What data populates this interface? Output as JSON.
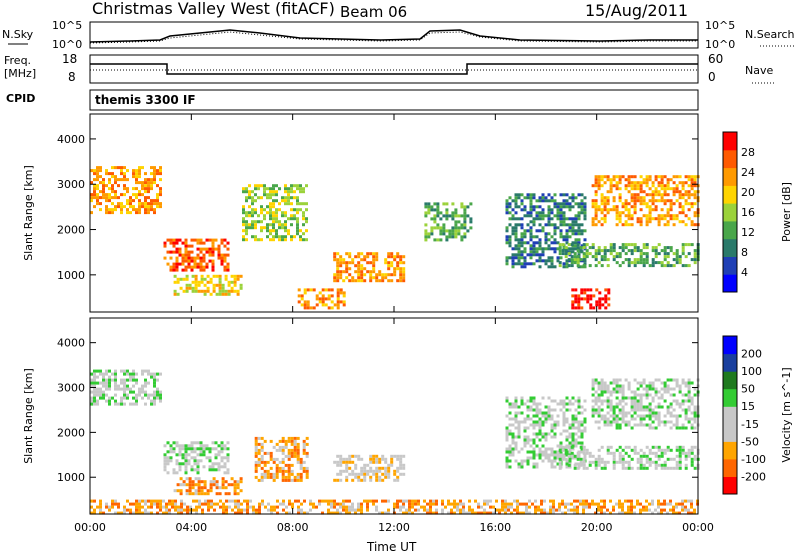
{
  "header": {
    "station": "Christmas Valley West (fitACF)",
    "beam": "Beam 06",
    "date": "15/Aug/2011"
  },
  "strip_labels": {
    "nsky": "N.Sky",
    "nsearch": "N.Search",
    "freq_line1": "Freq.",
    "freq_line2": "[MHz]",
    "nave": "Nave",
    "cpid": "CPID",
    "cpid_value": "themis 3300 IF"
  },
  "noise_axis": {
    "left_top": "10^5",
    "left_bottom": "10^0",
    "right_top": "10^5",
    "right_bottom": "10^0"
  },
  "freq_axis": {
    "left_top": "18",
    "left_bottom": "8",
    "right_top": "60",
    "right_bottom": "0"
  },
  "colors": {
    "power": [
      "#0000ff",
      "#1f3fb5",
      "#2a7a6a",
      "#49a64a",
      "#9bd23a",
      "#ffd400",
      "#ff9a00",
      "#ff5a00",
      "#ff0000"
    ],
    "velocity": [
      "#ff0000",
      "#ff6600",
      "#ffa500",
      "#c8c8c8",
      "#c8c8c8",
      "#33cc33",
      "#1f7a1f",
      "#1a3f9e",
      "#0000ff"
    ],
    "grid": "#000000"
  },
  "chart_data": [
    {
      "type": "heatmap",
      "title": "Power",
      "xlabel": "Time UT",
      "ylabel": "Slant Range [km]",
      "x_ticks": [
        "00:00",
        "04:00",
        "08:00",
        "12:00",
        "16:00",
        "20:00",
        "00:00"
      ],
      "xlim_hours": [
        0,
        24
      ],
      "ylim": [
        180,
        4550
      ],
      "y_ticks": [
        1000,
        2000,
        3000,
        4000
      ],
      "colorbar_label": "Power [dB]",
      "colorbar_ticks": [
        "28",
        "24",
        "20",
        "16",
        "12",
        "8",
        "4"
      ],
      "regions": [
        {
          "t": [
            0.0,
            2.8
          ],
          "r": [
            2400,
            3400
          ],
          "level": 6
        },
        {
          "t": [
            2.9,
            5.5
          ],
          "r": [
            1100,
            1800
          ],
          "level": 7
        },
        {
          "t": [
            3.3,
            6.0
          ],
          "r": [
            600,
            1000
          ],
          "level": 5
        },
        {
          "t": [
            6.0,
            8.5
          ],
          "r": [
            1800,
            3000
          ],
          "level": 4
        },
        {
          "t": [
            9.6,
            12.4
          ],
          "r": [
            900,
            1500
          ],
          "level": 6
        },
        {
          "t": [
            8.2,
            10.0
          ],
          "r": [
            300,
            700
          ],
          "level": 6
        },
        {
          "t": [
            13.2,
            15.0
          ],
          "r": [
            1800,
            2600
          ],
          "level": 3
        },
        {
          "t": [
            16.4,
            19.5
          ],
          "r": [
            1200,
            2800
          ],
          "level": 2
        },
        {
          "t": [
            19.8,
            24.0
          ],
          "r": [
            2100,
            3200
          ],
          "level": 6
        },
        {
          "t": [
            18.5,
            24.0
          ],
          "r": [
            1200,
            1700
          ],
          "level": 3
        },
        {
          "t": [
            19.0,
            20.5
          ],
          "r": [
            300,
            700
          ],
          "level": 8
        }
      ]
    },
    {
      "type": "heatmap",
      "title": "Velocity",
      "xlabel": "Time UT",
      "ylabel": "Slant Range [km]",
      "x_ticks": [
        "00:00",
        "04:00",
        "08:00",
        "12:00",
        "16:00",
        "20:00",
        "00:00"
      ],
      "xlim_hours": [
        0,
        24
      ],
      "ylim": [
        180,
        4550
      ],
      "y_ticks": [
        1000,
        2000,
        3000,
        4000
      ],
      "colorbar_label": "Velocity [m s^-1]",
      "colorbar_ticks": [
        "200",
        "100",
        "50",
        "15",
        "-15",
        "-50",
        "-100",
        "-200"
      ],
      "regions": [
        {
          "t": [
            0.0,
            2.8
          ],
          "r": [
            2600,
            3400
          ],
          "level": 4
        },
        {
          "t": [
            2.9,
            5.5
          ],
          "r": [
            1100,
            1800
          ],
          "level": 4
        },
        {
          "t": [
            6.5,
            8.6
          ],
          "r": [
            900,
            1900
          ],
          "level": 2
        },
        {
          "t": [
            3.3,
            6.0
          ],
          "r": [
            600,
            1000
          ],
          "level": 2
        },
        {
          "t": [
            9.6,
            12.4
          ],
          "r": [
            900,
            1500
          ],
          "level": 3
        },
        {
          "t": [
            16.4,
            19.5
          ],
          "r": [
            1200,
            2800
          ],
          "level": 4
        },
        {
          "t": [
            19.8,
            24.0
          ],
          "r": [
            2100,
            3200
          ],
          "level": 4
        },
        {
          "t": [
            18.5,
            24.0
          ],
          "r": [
            1200,
            1700
          ],
          "level": 4
        },
        {
          "t": [
            0.0,
            24.0
          ],
          "r": [
            200,
            500
          ],
          "level": 2
        }
      ]
    }
  ]
}
